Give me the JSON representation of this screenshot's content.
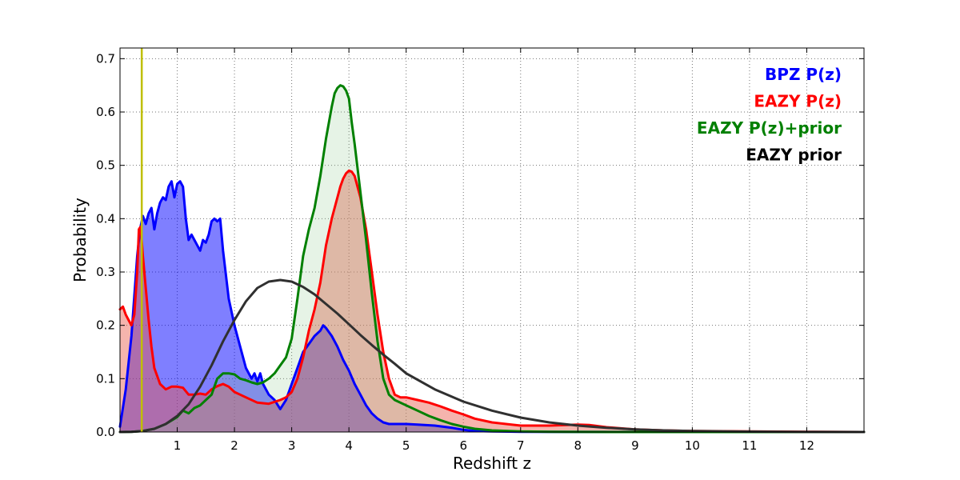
{
  "chart_data": {
    "type": "area",
    "xlabel": "Redshift z",
    "ylabel": "Probability",
    "xlim": [
      0,
      13
    ],
    "ylim": [
      0,
      0.72
    ],
    "xticks": [
      1,
      2,
      3,
      4,
      5,
      6,
      7,
      8,
      9,
      10,
      11,
      12
    ],
    "yticks": [
      0.0,
      0.1,
      0.2,
      0.3,
      0.4,
      0.5,
      0.6,
      0.7
    ],
    "ytick_labels": [
      "0.0",
      "0.1",
      "0.2",
      "0.3",
      "0.4",
      "0.5",
      "0.6",
      "0.7"
    ],
    "grid": true,
    "legend_position": "top-right",
    "vline": {
      "x": 0.38,
      "color": "#bfbf00"
    },
    "series": [
      {
        "name": "BPZ P(z)",
        "color": "#0000ff",
        "fill": "#0000ff",
        "fill_opacity": 0.5,
        "x": [
          0,
          0.1,
          0.2,
          0.3,
          0.35,
          0.4,
          0.45,
          0.5,
          0.55,
          0.6,
          0.65,
          0.7,
          0.75,
          0.8,
          0.85,
          0.9,
          0.95,
          1.0,
          1.05,
          1.1,
          1.15,
          1.2,
          1.25,
          1.3,
          1.35,
          1.4,
          1.45,
          1.5,
          1.55,
          1.6,
          1.65,
          1.7,
          1.75,
          1.8,
          1.9,
          2.0,
          2.1,
          2.2,
          2.3,
          2.35,
          2.4,
          2.45,
          2.5,
          2.6,
          2.7,
          2.8,
          2.9,
          3.0,
          3.1,
          3.2,
          3.3,
          3.4,
          3.5,
          3.55,
          3.6,
          3.7,
          3.8,
          3.9,
          4.0,
          4.1,
          4.2,
          4.3,
          4.4,
          4.5,
          4.6,
          4.7,
          4.8,
          4.9,
          5.0,
          5.2,
          5.5,
          5.8,
          6.0,
          6.2,
          6.5,
          7.0,
          8.0,
          9.0,
          10.0,
          11.0,
          12.0,
          13.0
        ],
        "y": [
          0.01,
          0.08,
          0.18,
          0.33,
          0.38,
          0.405,
          0.39,
          0.41,
          0.42,
          0.38,
          0.41,
          0.43,
          0.44,
          0.435,
          0.46,
          0.47,
          0.44,
          0.465,
          0.47,
          0.46,
          0.4,
          0.36,
          0.37,
          0.36,
          0.35,
          0.34,
          0.36,
          0.355,
          0.37,
          0.395,
          0.4,
          0.395,
          0.4,
          0.34,
          0.25,
          0.2,
          0.16,
          0.12,
          0.1,
          0.11,
          0.095,
          0.11,
          0.09,
          0.07,
          0.06,
          0.043,
          0.06,
          0.09,
          0.12,
          0.15,
          0.165,
          0.18,
          0.19,
          0.2,
          0.195,
          0.18,
          0.16,
          0.135,
          0.115,
          0.09,
          0.07,
          0.05,
          0.035,
          0.025,
          0.018,
          0.015,
          0.015,
          0.015,
          0.015,
          0.014,
          0.012,
          0.008,
          0.004,
          0.002,
          0.001,
          0.0005,
          0.0002,
          0.0001,
          0,
          0,
          0,
          0
        ]
      },
      {
        "name": "EAZY P(z)",
        "color": "#ff0000",
        "fill": "#e8584a",
        "fill_opacity": 0.45,
        "x": [
          0,
          0.05,
          0.1,
          0.15,
          0.2,
          0.25,
          0.3,
          0.33,
          0.36,
          0.4,
          0.45,
          0.5,
          0.55,
          0.6,
          0.7,
          0.8,
          0.9,
          1.0,
          1.1,
          1.2,
          1.3,
          1.4,
          1.5,
          1.6,
          1.7,
          1.8,
          1.9,
          2.0,
          2.1,
          2.2,
          2.4,
          2.6,
          2.8,
          2.9,
          3.0,
          3.1,
          3.2,
          3.3,
          3.4,
          3.5,
          3.6,
          3.7,
          3.8,
          3.85,
          3.9,
          3.95,
          4.0,
          4.05,
          4.1,
          4.2,
          4.3,
          4.4,
          4.5,
          4.6,
          4.7,
          4.8,
          4.9,
          5.0,
          5.2,
          5.4,
          5.6,
          5.8,
          6.0,
          6.2,
          6.5,
          7.0,
          7.5,
          8.0,
          8.2,
          8.5,
          9.0,
          9.5,
          10.0,
          11.0,
          12.0,
          13.0
        ],
        "y": [
          0.23,
          0.235,
          0.22,
          0.21,
          0.2,
          0.22,
          0.3,
          0.38,
          0.385,
          0.33,
          0.27,
          0.21,
          0.16,
          0.12,
          0.09,
          0.08,
          0.085,
          0.085,
          0.083,
          0.07,
          0.07,
          0.072,
          0.07,
          0.08,
          0.086,
          0.09,
          0.085,
          0.075,
          0.07,
          0.065,
          0.055,
          0.053,
          0.06,
          0.065,
          0.075,
          0.1,
          0.14,
          0.19,
          0.23,
          0.28,
          0.35,
          0.4,
          0.44,
          0.46,
          0.475,
          0.485,
          0.49,
          0.488,
          0.48,
          0.44,
          0.38,
          0.3,
          0.22,
          0.15,
          0.1,
          0.07,
          0.065,
          0.065,
          0.06,
          0.055,
          0.048,
          0.04,
          0.033,
          0.025,
          0.018,
          0.012,
          0.012,
          0.014,
          0.013,
          0.009,
          0.005,
          0.003,
          0.002,
          0.001,
          0.0005,
          0
        ]
      },
      {
        "name": "EAZY P(z)+prior",
        "color": "#008000",
        "fill": "#8fc98f",
        "fill_opacity": 0.22,
        "x": [
          0,
          0.2,
          0.4,
          0.6,
          0.8,
          1.0,
          1.1,
          1.2,
          1.3,
          1.4,
          1.5,
          1.6,
          1.65,
          1.7,
          1.75,
          1.8,
          1.9,
          2.0,
          2.1,
          2.2,
          2.3,
          2.4,
          2.5,
          2.6,
          2.7,
          2.8,
          2.9,
          3.0,
          3.1,
          3.2,
          3.3,
          3.4,
          3.5,
          3.6,
          3.7,
          3.75,
          3.8,
          3.85,
          3.9,
          3.95,
          4.0,
          4.05,
          4.1,
          4.2,
          4.3,
          4.4,
          4.5,
          4.6,
          4.7,
          4.8,
          5.0,
          5.2,
          5.4,
          5.6,
          5.8,
          6.0,
          6.2,
          6.5,
          7.0,
          7.5,
          8.0,
          9.0,
          10.0,
          11.0,
          12.0,
          13.0
        ],
        "y": [
          0,
          0.0005,
          0.002,
          0.006,
          0.015,
          0.028,
          0.04,
          0.035,
          0.045,
          0.05,
          0.06,
          0.07,
          0.085,
          0.1,
          0.105,
          0.11,
          0.11,
          0.108,
          0.1,
          0.097,
          0.093,
          0.09,
          0.093,
          0.1,
          0.11,
          0.125,
          0.14,
          0.175,
          0.25,
          0.33,
          0.38,
          0.42,
          0.48,
          0.55,
          0.61,
          0.635,
          0.645,
          0.65,
          0.648,
          0.64,
          0.625,
          0.58,
          0.54,
          0.45,
          0.36,
          0.26,
          0.17,
          0.1,
          0.07,
          0.06,
          0.05,
          0.04,
          0.03,
          0.022,
          0.015,
          0.01,
          0.006,
          0.003,
          0.001,
          0.0005,
          0.0002,
          0,
          0,
          0,
          0,
          0
        ]
      },
      {
        "name": "EAZY prior",
        "color": "#303030",
        "fill": "none",
        "fill_opacity": 0,
        "x": [
          0,
          0.2,
          0.4,
          0.6,
          0.8,
          1.0,
          1.2,
          1.4,
          1.6,
          1.8,
          2.0,
          2.2,
          2.4,
          2.6,
          2.8,
          3.0,
          3.2,
          3.4,
          3.6,
          3.8,
          4.0,
          4.2,
          4.4,
          4.6,
          4.8,
          5.0,
          5.5,
          6.0,
          6.5,
          7.0,
          7.5,
          8.0,
          8.5,
          9.0,
          9.5,
          10.0,
          11.0,
          12.0,
          13.0
        ],
        "y": [
          0,
          0.0005,
          0.002,
          0.006,
          0.015,
          0.03,
          0.052,
          0.085,
          0.125,
          0.17,
          0.21,
          0.245,
          0.27,
          0.282,
          0.285,
          0.282,
          0.272,
          0.258,
          0.24,
          0.222,
          0.202,
          0.182,
          0.163,
          0.145,
          0.128,
          0.11,
          0.08,
          0.057,
          0.04,
          0.027,
          0.018,
          0.012,
          0.008,
          0.005,
          0.003,
          0.002,
          0.0007,
          0.0002,
          0
        ]
      }
    ]
  }
}
